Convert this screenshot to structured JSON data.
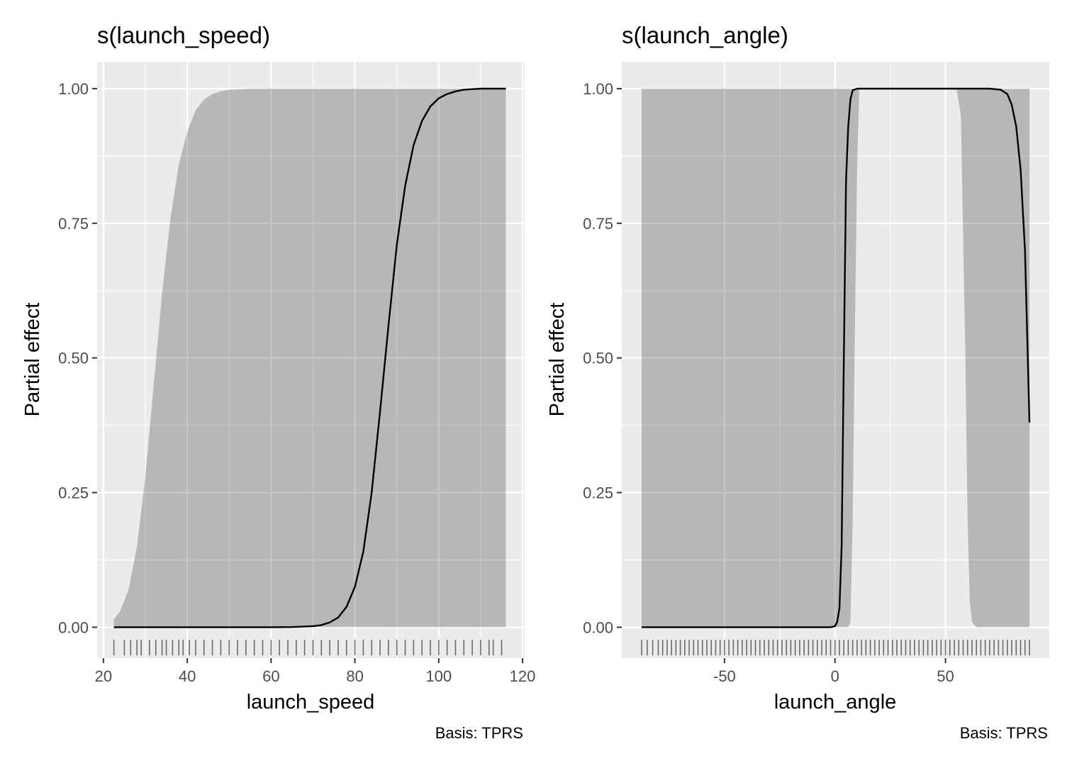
{
  "chart_data": [
    {
      "type": "line",
      "title": "s(launch_speed)",
      "xlabel": "launch_speed",
      "ylabel": "Partial effect",
      "caption": "Basis: TPRS",
      "xlim": [
        18.5,
        120.5
      ],
      "ylim": [
        -0.0575,
        1.05
      ],
      "x_ticks": [
        20,
        40,
        60,
        80,
        100,
        120
      ],
      "x_tick_labels": [
        "20",
        "40",
        "60",
        "80",
        "100",
        "120"
      ],
      "y_ticks": [
        0,
        0.25,
        0.5,
        0.75,
        1
      ],
      "y_tick_labels": [
        "0.00",
        "0.25",
        "0.50",
        "0.75",
        "1.00"
      ],
      "grid": true,
      "series": [
        {
          "role": "estimate",
          "x": [
            22.5,
            30,
            40,
            50,
            60,
            65,
            70,
            72,
            74,
            76,
            78,
            80,
            82,
            84,
            86,
            88,
            90,
            92,
            94,
            96,
            98,
            100,
            102,
            104,
            106,
            108,
            110,
            116
          ],
          "y": [
            0,
            0,
            0,
            0,
            0,
            0.0003,
            0.002,
            0.004,
            0.009,
            0.018,
            0.038,
            0.075,
            0.14,
            0.25,
            0.4,
            0.56,
            0.71,
            0.82,
            0.895,
            0.94,
            0.967,
            0.982,
            0.99,
            0.995,
            0.998,
            0.999,
            1.0,
            1.0
          ]
        },
        {
          "role": "confidence-band",
          "x": [
            22.5,
            24,
            26,
            28,
            30,
            32,
            34,
            36,
            38,
            40,
            42,
            44,
            46,
            48,
            50,
            55,
            60,
            116
          ],
          "lower": [
            0,
            0,
            0,
            0,
            0,
            0,
            0,
            0,
            0,
            0,
            0,
            0,
            0,
            0,
            0,
            0,
            0,
            0
          ],
          "upper": [
            0.015,
            0.03,
            0.07,
            0.15,
            0.28,
            0.45,
            0.62,
            0.76,
            0.86,
            0.92,
            0.96,
            0.98,
            0.99,
            0.995,
            0.998,
            1.0,
            1.0,
            1.0
          ]
        }
      ],
      "rug": [
        22.5,
        25,
        26.5,
        28,
        29,
        31,
        32.5,
        34,
        35,
        36.5,
        38,
        39,
        40.5,
        42,
        44,
        46,
        48,
        50,
        52,
        54,
        56,
        58,
        60,
        62,
        64,
        66,
        68,
        70,
        72,
        74,
        76,
        78,
        80,
        82,
        84,
        86,
        88,
        90,
        92,
        94,
        96,
        98,
        100,
        102,
        104,
        106,
        108,
        110,
        112,
        113,
        115
      ]
    },
    {
      "type": "line",
      "title": "s(launch_angle)",
      "xlabel": "launch_angle",
      "ylabel": "Partial effect",
      "caption": "Basis: TPRS",
      "xlim": [
        -96.5,
        97
      ],
      "ylim": [
        -0.0575,
        1.05
      ],
      "x_ticks": [
        -50,
        0,
        50
      ],
      "x_tick_labels": [
        "-50",
        "0",
        "50"
      ],
      "y_ticks": [
        0,
        0.25,
        0.5,
        0.75,
        1
      ],
      "y_tick_labels": [
        "0.00",
        "0.25",
        "0.50",
        "0.75",
        "1.00"
      ],
      "grid": true,
      "series": [
        {
          "role": "estimate",
          "x": [
            -87.5,
            -10,
            -2,
            0,
            1,
            2,
            3,
            4,
            5,
            6,
            7,
            8,
            10,
            20,
            40,
            60,
            70,
            75,
            78,
            80,
            82,
            84,
            86,
            88
          ],
          "y": [
            0,
            0,
            0,
            0.002,
            0.01,
            0.035,
            0.15,
            0.5,
            0.83,
            0.93,
            0.98,
            0.997,
            1.0,
            1.0,
            1.0,
            1.0,
            1.0,
            0.998,
            0.99,
            0.97,
            0.93,
            0.85,
            0.7,
            0.38
          ]
        },
        {
          "role": "confidence-band",
          "x": [
            -87.5,
            4,
            5,
            6,
            7,
            8,
            9,
            10,
            11,
            55,
            57,
            59,
            60,
            61,
            62,
            64,
            88
          ],
          "lower": [
            0,
            0,
            0,
            0,
            0.01,
            0.2,
            0.55,
            0.85,
            1.0,
            1.0,
            0.95,
            0.5,
            0.2,
            0.05,
            0.01,
            0,
            0
          ],
          "upper": [
            1,
            1,
            1,
            1,
            1,
            1,
            1,
            1,
            1,
            1,
            1,
            1,
            1,
            1,
            1,
            1,
            1
          ]
        }
      ],
      "rug": [
        -87.5,
        -85,
        -82.5,
        -80,
        -78,
        -76,
        -74,
        -72,
        -70,
        -68,
        -66,
        -64,
        -62,
        -60,
        -58,
        -56,
        -54,
        -52,
        -50,
        -48,
        -46,
        -44,
        -42,
        -40,
        -38,
        -36,
        -34,
        -32,
        -30,
        -28,
        -26,
        -24,
        -22,
        -20,
        -18,
        -16,
        -14,
        -12,
        -10,
        -8,
        -6,
        -4,
        -2,
        0,
        2,
        4,
        6,
        8,
        10,
        12,
        14,
        16,
        18,
        20,
        22,
        24,
        26,
        28,
        30,
        32,
        34,
        36,
        38,
        40,
        42,
        44,
        46,
        48,
        50,
        52,
        54,
        56,
        58,
        60,
        62,
        64,
        66,
        68,
        70,
        72,
        74,
        76,
        78,
        80,
        82,
        84,
        86,
        88
      ]
    }
  ]
}
